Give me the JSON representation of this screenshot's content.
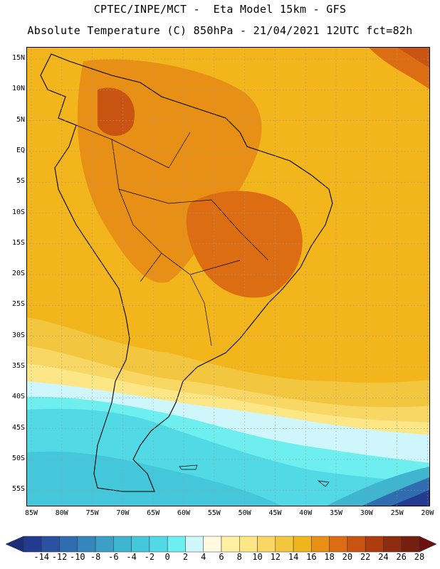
{
  "header": {
    "line1": "CPTEC/INPE/MCT -  Eta Model 15km - GFS",
    "line2": "Absolute Temperature (C) 850hPa - 21/04/2021 12UTC fct=82h"
  },
  "map": {
    "lat_labels": [
      "15N",
      "10N",
      "5N",
      "EQ",
      "5S",
      "10S",
      "15S",
      "20S",
      "25S",
      "30S",
      "35S",
      "40S",
      "45S",
      "50S",
      "55S"
    ],
    "lon_labels": [
      "85W",
      "80W",
      "75W",
      "70W",
      "65W",
      "60W",
      "55W",
      "50W",
      "45W",
      "40W",
      "35W",
      "30W",
      "25W",
      "20W"
    ]
  },
  "colorbar": {
    "labels": [
      "-14",
      "-12",
      "-10",
      "-8",
      "-6",
      "-4",
      "-2",
      "0",
      "2",
      "4",
      "6",
      "8",
      "10",
      "12",
      "14",
      "16",
      "18",
      "20",
      "22",
      "24",
      "26",
      "28"
    ],
    "colors": [
      "#233b8f",
      "#2b52a0",
      "#2f6cb0",
      "#3586bd",
      "#3c9fc8",
      "#3fb5cf",
      "#45c7db",
      "#52d9e6",
      "#6feef0",
      "#cff6fb",
      "#fff9df",
      "#fff0a3",
      "#fce686",
      "#f8d764",
      "#f3c640",
      "#f0b41c",
      "#e88f15",
      "#dc6d12",
      "#c95310",
      "#ad3d0f",
      "#8e2c10",
      "#741f10"
    ],
    "under_color": "#1d2e78",
    "over_color": "#6a1010"
  }
}
